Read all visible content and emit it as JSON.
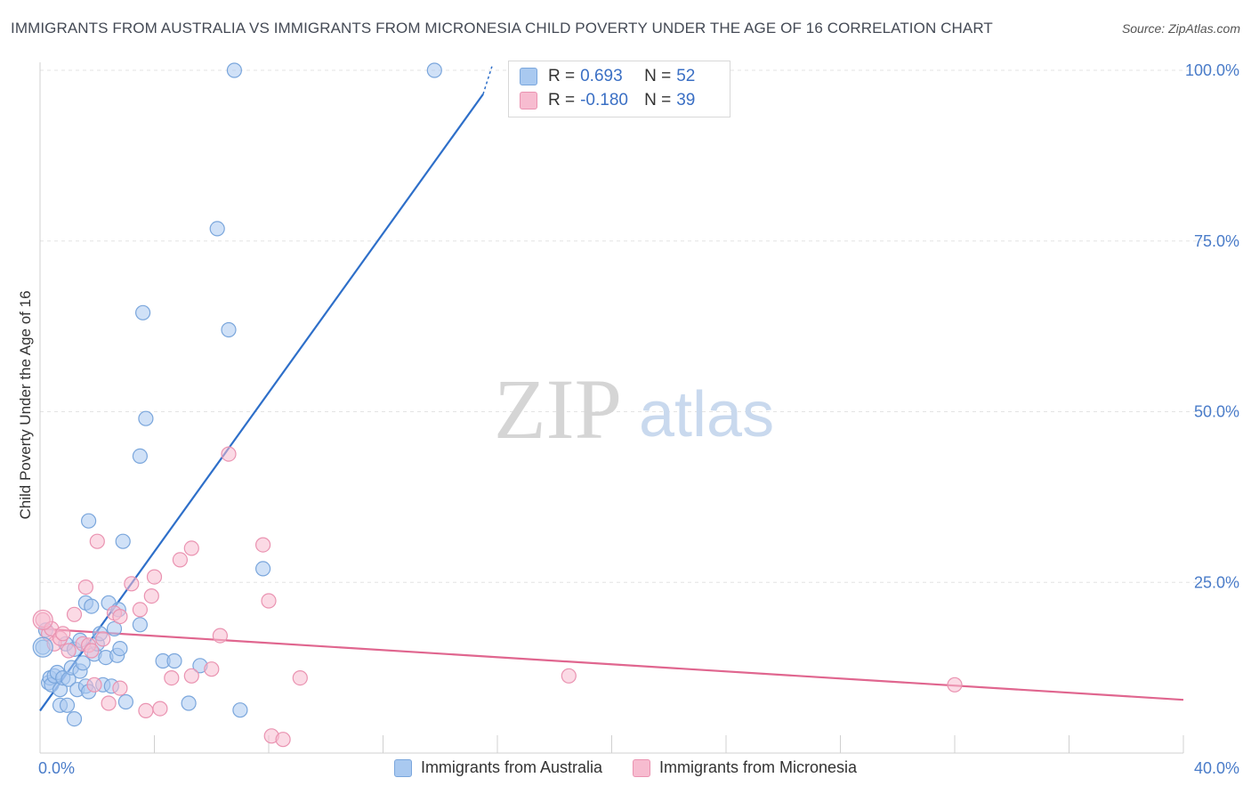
{
  "header": {
    "title": "IMMIGRANTS FROM AUSTRALIA VS IMMIGRANTS FROM MICRONESIA CHILD POVERTY UNDER THE AGE OF 16 CORRELATION CHART",
    "source": "Source: ZipAtlas.com"
  },
  "watermark": {
    "zip": "ZIP",
    "atlas": "atlas"
  },
  "legend": {
    "rows": [
      {
        "r_label": "R =",
        "r_value": "0.693",
        "n_label": "N =",
        "n_value": "52"
      },
      {
        "r_label": "R =",
        "r_value": "-0.180",
        "n_label": "N =",
        "n_value": "39"
      }
    ]
  },
  "colors": {
    "australia_fill": "#a9c9f0",
    "australia_stroke": "#7aa6dc",
    "australia_line": "#2e6fc9",
    "micronesia_fill": "#f7bcd0",
    "micronesia_stroke": "#ea93b1",
    "micronesia_line": "#e0668f",
    "grid": "#e3e3e3",
    "tick_text": "#4a7cc9"
  },
  "chart_data": {
    "type": "scatter",
    "title": "IMMIGRANTS FROM AUSTRALIA VS IMMIGRANTS FROM MICRONESIA CHILD POVERTY UNDER THE AGE OF 16 CORRELATION CHART",
    "xlabel": "",
    "ylabel": "Child Poverty Under the Age of 16",
    "xlim": [
      0,
      40
    ],
    "ylim": [
      0,
      102
    ],
    "x_tick_labels": [
      "0.0%",
      "40.0%"
    ],
    "y_ticks": [
      25,
      50,
      75,
      100
    ],
    "y_tick_labels": [
      "25.0%",
      "50.0%",
      "75.0%",
      "100.0%"
    ],
    "grid": true,
    "legend": [
      "Immigrants from Australia",
      "Immigrants from Micronesia"
    ],
    "series": [
      {
        "name": "Immigrants from Australia",
        "r": 0.693,
        "n": 52,
        "trend": {
          "x": [
            0,
            15.5
          ],
          "y": [
            6.2,
            96.5
          ]
        },
        "points": [
          [
            0.1,
            15.5
          ],
          [
            0.2,
            18.0
          ],
          [
            0.3,
            10.3
          ],
          [
            0.35,
            11.0
          ],
          [
            0.4,
            10.0
          ],
          [
            0.5,
            11.3
          ],
          [
            0.6,
            11.8
          ],
          [
            0.7,
            9.3
          ],
          [
            0.7,
            7.0
          ],
          [
            0.8,
            11.0
          ],
          [
            0.9,
            16.0
          ],
          [
            0.95,
            7.0
          ],
          [
            1.0,
            10.8
          ],
          [
            1.1,
            12.5
          ],
          [
            1.2,
            15.2
          ],
          [
            1.2,
            5.0
          ],
          [
            1.3,
            9.3
          ],
          [
            1.4,
            16.5
          ],
          [
            1.4,
            12.0
          ],
          [
            1.5,
            13.2
          ],
          [
            1.6,
            9.8
          ],
          [
            1.7,
            9.0
          ],
          [
            1.6,
            22.0
          ],
          [
            1.7,
            34.0
          ],
          [
            1.8,
            21.5
          ],
          [
            1.9,
            14.5
          ],
          [
            2.0,
            16.0
          ],
          [
            2.1,
            17.5
          ],
          [
            2.2,
            10.0
          ],
          [
            2.3,
            14.0
          ],
          [
            2.4,
            22.0
          ],
          [
            2.5,
            9.8
          ],
          [
            2.6,
            18.2
          ],
          [
            2.7,
            14.3
          ],
          [
            2.75,
            21.0
          ],
          [
            2.8,
            15.3
          ],
          [
            2.9,
            31.0
          ],
          [
            3.0,
            7.5
          ],
          [
            3.5,
            43.5
          ],
          [
            3.6,
            64.5
          ],
          [
            3.7,
            49.0
          ],
          [
            4.3,
            13.5
          ],
          [
            4.7,
            13.5
          ],
          [
            5.2,
            7.3
          ],
          [
            5.6,
            12.8
          ],
          [
            6.2,
            76.8
          ],
          [
            6.6,
            62.0
          ],
          [
            6.8,
            100.0
          ],
          [
            7.0,
            6.3
          ],
          [
            7.8,
            27.0
          ],
          [
            13.8,
            100.0
          ],
          [
            3.5,
            18.8
          ]
        ]
      },
      {
        "name": "Immigrants from Micronesia",
        "r": -0.18,
        "n": 39,
        "trend": {
          "x": [
            0,
            40
          ],
          "y": [
            18.2,
            7.8
          ]
        },
        "points": [
          [
            0.1,
            19.5
          ],
          [
            0.3,
            17.5
          ],
          [
            0.4,
            18.2
          ],
          [
            0.5,
            16.0
          ],
          [
            0.7,
            16.8
          ],
          [
            0.8,
            17.5
          ],
          [
            1.0,
            15.0
          ],
          [
            1.2,
            20.3
          ],
          [
            1.5,
            16.0
          ],
          [
            1.6,
            24.3
          ],
          [
            1.7,
            15.8
          ],
          [
            1.8,
            15.0
          ],
          [
            1.9,
            10.0
          ],
          [
            2.0,
            31.0
          ],
          [
            2.2,
            16.7
          ],
          [
            2.4,
            7.3
          ],
          [
            2.6,
            20.5
          ],
          [
            2.8,
            20.0
          ],
          [
            2.8,
            9.5
          ],
          [
            3.2,
            24.8
          ],
          [
            3.5,
            21.0
          ],
          [
            3.7,
            6.2
          ],
          [
            3.9,
            23.0
          ],
          [
            4.0,
            25.8
          ],
          [
            4.2,
            6.5
          ],
          [
            4.6,
            11.0
          ],
          [
            4.9,
            28.3
          ],
          [
            5.3,
            30.0
          ],
          [
            5.3,
            11.3
          ],
          [
            6.0,
            12.3
          ],
          [
            6.3,
            17.2
          ],
          [
            6.6,
            43.8
          ],
          [
            7.8,
            30.5
          ],
          [
            8.0,
            22.3
          ],
          [
            8.1,
            2.5
          ],
          [
            8.5,
            2.0
          ],
          [
            9.1,
            11.0
          ],
          [
            18.5,
            11.3
          ],
          [
            32.0,
            10.0
          ]
        ]
      }
    ]
  }
}
